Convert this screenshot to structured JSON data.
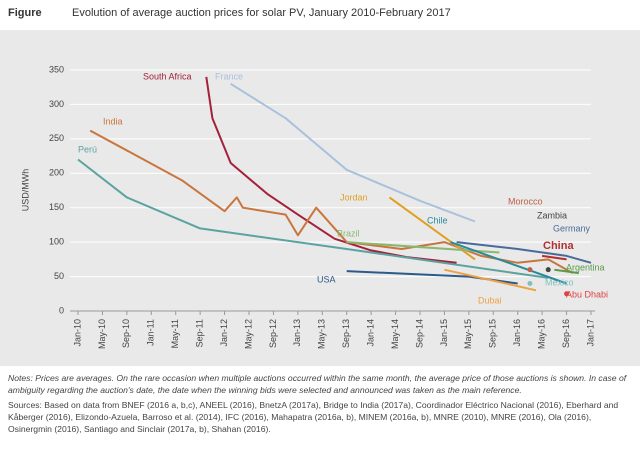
{
  "chart_data": {
    "type": "line",
    "figure_label": "Figure",
    "title": "Evolution of average auction prices for solar PV, January 2010-February 2017",
    "y_label": "USD/MWh",
    "xlim": [
      "2010-01",
      "2017-01"
    ],
    "xticks": [
      {
        "value": "2010-01",
        "label": "Jan-10"
      },
      {
        "value": "2010-05",
        "label": "May-10"
      },
      {
        "value": "2010-09",
        "label": "Sep-10"
      },
      {
        "value": "2011-01",
        "label": "Jan-11"
      },
      {
        "value": "2011-05",
        "label": "May-11"
      },
      {
        "value": "2011-09",
        "label": "Sep-11"
      },
      {
        "value": "2012-01",
        "label": "Jan-12"
      },
      {
        "value": "2012-05",
        "label": "May-12"
      },
      {
        "value": "2012-09",
        "label": "Sep-12"
      },
      {
        "value": "2013-01",
        "label": "Jan-13"
      },
      {
        "value": "2013-05",
        "label": "May-13"
      },
      {
        "value": "2013-09",
        "label": "Sep-13"
      },
      {
        "value": "2014-01",
        "label": "Jan-14"
      },
      {
        "value": "2014-05",
        "label": "May-14"
      },
      {
        "value": "2014-09",
        "label": "Sep-14"
      },
      {
        "value": "2015-01",
        "label": "Jan-15"
      },
      {
        "value": "2015-05",
        "label": "May-15"
      },
      {
        "value": "2015-09",
        "label": "Sep-15"
      },
      {
        "value": "2016-01",
        "label": "Jan-16"
      },
      {
        "value": "2016-05",
        "label": "May-16"
      },
      {
        "value": "2016-09",
        "label": "Sep-16"
      },
      {
        "value": "2017-01",
        "label": "Jan-17"
      }
    ],
    "ylim": [
      0,
      350
    ],
    "yticks": [
      0,
      50,
      100,
      150,
      200,
      250,
      300,
      350
    ],
    "grid": true,
    "series": [
      {
        "name": "South Africa",
        "color": "#a3213a",
        "x": [
          "2011-10",
          "2011-11",
          "2012-02",
          "2012-08",
          "2013-01",
          "2013-07",
          "2014-01",
          "2014-07",
          "2015-03"
        ],
        "values": [
          340,
          280,
          215,
          170,
          140,
          105,
          88,
          78,
          70
        ]
      },
      {
        "name": "France",
        "color": "#a9c1dc",
        "x": [
          "2012-02",
          "2012-11",
          "2013-09",
          "2014-09",
          "2015-06"
        ],
        "values": [
          330,
          280,
          205,
          160,
          130
        ]
      },
      {
        "name": "India",
        "color": "#c8763d",
        "x": [
          "2010-03",
          "2011-06",
          "2012-01",
          "2012-03",
          "2012-04",
          "2012-11",
          "2013-01",
          "2013-04",
          "2013-09",
          "2014-06",
          "2015-01",
          "2015-07",
          "2016-01",
          "2016-06",
          "2016-10"
        ],
        "values": [
          262,
          190,
          145,
          165,
          150,
          140,
          110,
          150,
          100,
          90,
          100,
          80,
          70,
          75,
          55
        ]
      },
      {
        "name": "Perú",
        "color": "#5aa3a0",
        "x": [
          "2010-01",
          "2010-09",
          "2011-09",
          "2013-09",
          "2016-06"
        ],
        "values": [
          220,
          165,
          120,
          90,
          48
        ]
      },
      {
        "name": "USA",
        "color": "#2c5a8a",
        "x": [
          "2013-09",
          "2015-05",
          "2016-01"
        ],
        "values": [
          58,
          50,
          40
        ]
      },
      {
        "name": "Jordan",
        "color": "#e0a020",
        "x": [
          "2014-04",
          "2015-06"
        ],
        "values": [
          165,
          75
        ]
      },
      {
        "name": "Brazil",
        "color": "#8ab870",
        "x": [
          "2013-09",
          "2015-10"
        ],
        "values": [
          100,
          85
        ]
      },
      {
        "name": "Chile",
        "color": "#2b8a9a",
        "x": [
          "2015-02",
          "2016-09"
        ],
        "values": [
          100,
          40
        ]
      },
      {
        "name": "Morocco",
        "color": "#c0604a",
        "x": [
          "2016-03"
        ],
        "values": [
          60
        ]
      },
      {
        "name": "Zambia",
        "color": "#444444",
        "x": [
          "2016-06"
        ],
        "values": [
          60
        ]
      },
      {
        "name": "Germany",
        "color": "#4a6a9a",
        "x": [
          "2015-03",
          "2016-01",
          "2016-09",
          "2017-01"
        ],
        "values": [
          100,
          90,
          80,
          70
        ]
      },
      {
        "name": "China",
        "color": "#b03030",
        "x": [
          "2016-05",
          "2016-09"
        ],
        "values": [
          80,
          75
        ]
      },
      {
        "name": "Argentina",
        "color": "#5a9a4a",
        "x": [
          "2016-07",
          "2016-11"
        ],
        "values": [
          60,
          55
        ]
      },
      {
        "name": "Mexico",
        "color": "#80c0c0",
        "x": [
          "2016-03"
        ],
        "values": [
          40
        ]
      },
      {
        "name": "Dubai",
        "color": "#f0a040",
        "x": [
          "2015-01",
          "2016-04"
        ],
        "values": [
          60,
          30
        ]
      },
      {
        "name": "Abu Dhabi",
        "color": "#e04040",
        "x": [
          "2016-09"
        ],
        "values": [
          25
        ]
      }
    ],
    "notes": "Notes: Prices are averages. On the rare occasion when multiple auctions occurred within the same month, the average price of those auctions is shown. In case of ambiguity regarding the auction's date, the date when the winning bids were selected and announced was taken as the main reference.",
    "sources": "Sources: Based on data from BNEF (2016 a, b,c), ANEEL (2016), BnetzA (2017a), Bridge to India (2017a), Coordinador Eléctrico Nacional (2016), Eberhard and Kåberger (2016), Elizondo-Azuela, Barroso et al. (2014), IFC (2016), Mahapatra (2016a, b), MINEM (2016a, b), MNRE (2010), MNRE (2016), Ola (2016), Osinergmin (2016), Santiago and Sinclair (2017a, b), Shahan (2016)."
  }
}
